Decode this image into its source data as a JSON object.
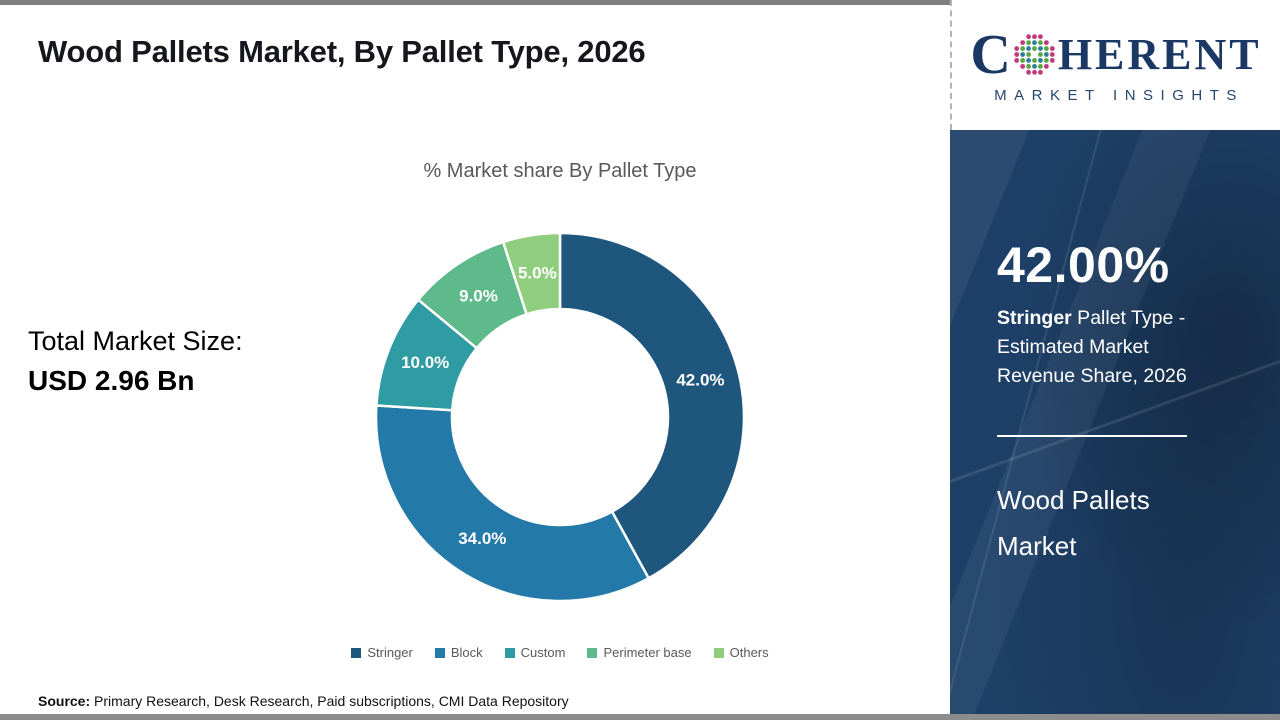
{
  "header": {
    "title": "Wood Pallets Market, By Pallet Type, 2026"
  },
  "logo": {
    "brand_first_letter": "C",
    "brand_rest": "HERENT",
    "subtitle": "MARKET INSIGHTS",
    "dot_colors": {
      "outer": "#c2397e",
      "inner1": "#2c8099",
      "inner2": "#58a83f"
    }
  },
  "chart_data": {
    "type": "pie",
    "donut": true,
    "title": "% Market share By Pallet Type",
    "categories": [
      "Stringer",
      "Block",
      "Custom",
      "Perimeter base",
      "Others"
    ],
    "values": [
      42,
      34,
      10,
      9,
      5
    ],
    "labels": [
      "42.0%",
      "34.0%",
      "10.0%",
      "9.0%",
      "5.0%"
    ],
    "colors": [
      "#1f567e",
      "#2379a7",
      "#2f9ba2",
      "#5fba8b",
      "#8fce7e"
    ],
    "start_angle_deg": 0,
    "direction": "clockwise",
    "legend_position": "bottom"
  },
  "market_size": {
    "label": "Total Market Size:",
    "value": "USD 2.96 Bn"
  },
  "sidebar": {
    "highlight_value": "42.00%",
    "highlight_bold": "Stringer",
    "highlight_rest": " Pallet Type - Estimated Market Revenue Share, 2026",
    "market_name_line1": "Wood Pallets",
    "market_name_line2": "Market"
  },
  "footer": {
    "source_label": "Source:",
    "source_text": " Primary Research, Desk Research, Paid subscriptions, CMI Data Repository"
  }
}
